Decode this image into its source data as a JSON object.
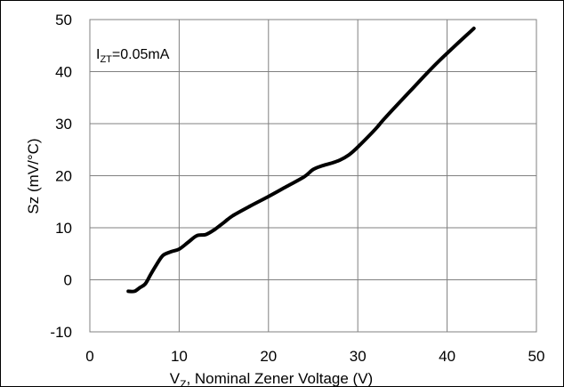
{
  "chart_data": {
    "type": "line",
    "xlabel_parts": {
      "pre": "V",
      "sub": "Z",
      "post": ", Nominal Zener Voltage (V)"
    },
    "ylabel": "Sz (mV/°C)",
    "xlim": [
      0,
      50
    ],
    "ylim": [
      -10,
      50
    ],
    "xticks": [
      0,
      10,
      20,
      30,
      40,
      50
    ],
    "yticks": [
      -10,
      0,
      10,
      20,
      30,
      40,
      50
    ],
    "grid": true,
    "annotation_parts": {
      "pre": "I",
      "sub": "ZT",
      "post": "=0.05mA"
    },
    "series": [
      {
        "color": "#000000",
        "x": [
          4.3,
          5.0,
          5.6,
          6.2,
          6.8,
          7.5,
          8.2,
          9.1,
          10.0,
          11.0,
          12.0,
          13.0,
          14.0,
          15.0,
          16.0,
          18.0,
          20.0,
          22.0,
          24.0,
          25.0,
          26.0,
          27.0,
          28.0,
          29.0,
          30.0,
          32.0,
          33.0,
          36.0,
          39.0,
          43.0
        ],
        "y": [
          -2.2,
          -2.2,
          -1.5,
          -0.8,
          1.0,
          3.0,
          4.7,
          5.4,
          5.9,
          7.2,
          8.5,
          8.7,
          9.7,
          11.0,
          12.3,
          14.2,
          16.0,
          17.9,
          19.8,
          21.2,
          21.9,
          22.4,
          23.0,
          24.0,
          25.5,
          29.0,
          31.0,
          36.5,
          41.9,
          48.3
        ]
      }
    ]
  }
}
